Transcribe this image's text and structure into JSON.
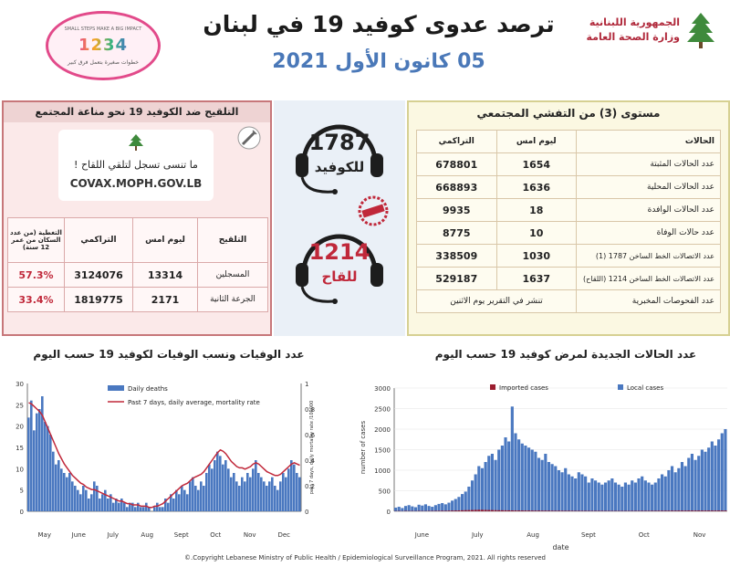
{
  "header": {
    "title": "ترصد عدوى كوفيد 19 في لبنان",
    "date": "05 كانون الأول 2021",
    "ministry_line1": "الجمهورية اللبنانية",
    "ministry_line2": "وزارة الصحة العامة",
    "campaign_top": "SMALL STEPS MAKE A BIG IMPACT",
    "campaign_numbers": "1234",
    "campaign_bottom": "خطوات صغيرة بتعمل فرق كبير"
  },
  "colors": {
    "title_blue": "#4a78b8",
    "left_panel_bg": "#fbe9e9",
    "left_panel_border": "#c7777a",
    "right_panel_bg": "#fbf8e2",
    "right_panel_border": "#d6d092",
    "middle_bg": "#eaf0f7",
    "bar_blue": "#4a78c0",
    "line_red": "#c0283a",
    "imported_red": "#9b1c2e"
  },
  "vaccination": {
    "heading": "التلقيح ضد الكوفيد 19 نحو مناعة المجتمع",
    "reminder": "ما تنسى تسجل لتلقي اللقاح !",
    "url": "COVAX.MOPH.GOV.LB",
    "columns": [
      "التلقيح",
      "ليوم امس",
      "التراكمي",
      "التغطية (من عدد السكان من عمر 12 سنة)"
    ],
    "rows": [
      {
        "label": "المسجلين",
        "yesterday": "13314",
        "cumulative": "3124076",
        "coverage": "57.3%"
      },
      {
        "label": "الجرعة الثانية",
        "yesterday": "2171",
        "cumulative": "1819775",
        "coverage": "33.4%"
      }
    ]
  },
  "middle": {
    "cases_number": "1787",
    "cases_label": "للكوفيد",
    "vaccine_number": "1214",
    "vaccine_label": "للقاح",
    "stamp_icon": "red-stamp-icon"
  },
  "cases": {
    "heading": "مستوى (3) من التفشي المجتمعي",
    "columns": [
      "الحالات",
      "ليوم امس",
      "التراكمي"
    ],
    "rows": [
      {
        "label": "عدد الحالات المثبتة",
        "yesterday": "1654",
        "cumulative": "678801"
      },
      {
        "label": "عدد الحالات المحلية",
        "yesterday": "1636",
        "cumulative": "668893"
      },
      {
        "label": "عدد الحالات الوافدة",
        "yesterday": "18",
        "cumulative": "9935"
      },
      {
        "label": "عدد حالات الوفاة",
        "yesterday": "10",
        "cumulative": "8775"
      },
      {
        "label": "عدد الاتصالات الخط الساخن 1787 (1)",
        "yesterday": "1030",
        "cumulative": "338509"
      },
      {
        "label": "عدد الاتصالات الخط الساخن 1214 (اللقاح)",
        "yesterday": "1637",
        "cumulative": "529187"
      }
    ],
    "tests_label": "عدد الفحوصات المخبرية",
    "tests_note": "تنشر في التقرير يوم الاثنين"
  },
  "footer": "©.Copyright Lebanese Ministry of Public Health / Epidemiological Surveillance Program, 2021. All rights reserved",
  "chart_data": [
    {
      "type": "bar",
      "title": "عدد الوفيات ونسب الوفيات لكوفيد 19 حسب اليوم",
      "xlabel": "",
      "ylabel": "",
      "y2label": "past 7 days, daily mortality rate /100000",
      "ylim": [
        0,
        30
      ],
      "y2lim": [
        0,
        1
      ],
      "yticks": [
        0,
        5,
        10,
        15,
        20,
        25,
        30
      ],
      "y2ticks": [
        0,
        0.2,
        0.4,
        0.6,
        0.8,
        1
      ],
      "months": [
        "May",
        "June",
        "July",
        "Aug",
        "Sept",
        "Oct",
        "Nov",
        "Dec"
      ],
      "month_positions": [
        0,
        1,
        2,
        3,
        4,
        5,
        6,
        7
      ],
      "legend": [
        "Daily deaths",
        "Past 7 days, daily average, mortality rate"
      ],
      "legend_position": "top-center",
      "series": [
        {
          "name": "Daily deaths",
          "kind": "bar",
          "values": [
            22,
            26,
            19,
            23,
            24,
            27,
            21,
            20,
            18,
            14,
            11,
            12,
            10,
            9,
            8,
            9,
            7,
            6,
            5,
            4,
            6,
            5,
            3,
            4,
            7,
            6,
            3,
            4,
            5,
            3,
            4,
            2,
            3,
            2,
            3,
            2,
            1,
            2,
            2,
            1,
            2,
            1,
            1,
            2,
            1,
            0,
            1,
            2,
            1,
            1,
            3,
            2,
            4,
            3,
            5,
            4,
            6,
            5,
            4,
            7,
            8,
            6,
            5,
            7,
            6,
            9,
            11,
            10,
            12,
            14,
            13,
            11,
            12,
            10,
            8,
            9,
            7,
            6,
            8,
            7,
            9,
            8,
            10,
            12,
            9,
            8,
            7,
            6,
            7,
            8,
            6,
            5,
            7,
            9,
            8,
            10,
            12,
            11,
            9,
            8
          ]
        },
        {
          "name": "Past 7 days, daily average, mortality rate",
          "kind": "line",
          "axis": "y2",
          "values": [
            0.85,
            0.84,
            0.82,
            0.8,
            0.78,
            0.75,
            0.7,
            0.65,
            0.6,
            0.55,
            0.5,
            0.45,
            0.41,
            0.37,
            0.34,
            0.31,
            0.28,
            0.26,
            0.24,
            0.22,
            0.21,
            0.19,
            0.18,
            0.17,
            0.17,
            0.16,
            0.15,
            0.14,
            0.13,
            0.12,
            0.11,
            0.1,
            0.09,
            0.08,
            0.08,
            0.07,
            0.06,
            0.06,
            0.05,
            0.05,
            0.05,
            0.04,
            0.04,
            0.04,
            0.03,
            0.03,
            0.04,
            0.04,
            0.05,
            0.06,
            0.08,
            0.1,
            0.12,
            0.14,
            0.16,
            0.18,
            0.2,
            0.21,
            0.22,
            0.24,
            0.26,
            0.27,
            0.28,
            0.29,
            0.31,
            0.34,
            0.37,
            0.4,
            0.43,
            0.46,
            0.48,
            0.47,
            0.45,
            0.42,
            0.39,
            0.37,
            0.35,
            0.34,
            0.34,
            0.33,
            0.34,
            0.35,
            0.37,
            0.38,
            0.37,
            0.35,
            0.33,
            0.31,
            0.3,
            0.29,
            0.28,
            0.28,
            0.29,
            0.31,
            0.33,
            0.35,
            0.37,
            0.38,
            0.37,
            0.36
          ]
        }
      ]
    },
    {
      "type": "bar",
      "title": "عدد الحالات الجديدة لمرض كوفيد 19 حسب اليوم",
      "xlabel": "date",
      "ylabel": "number of cases",
      "ylim": [
        0,
        3000
      ],
      "yticks": [
        0,
        500,
        1000,
        1500,
        2000,
        2500,
        3000
      ],
      "months": [
        "June",
        "July",
        "Aug",
        "Sept",
        "Oct",
        "Nov"
      ],
      "month_positions": [
        0,
        1,
        2,
        3,
        4,
        5
      ],
      "legend": [
        "Imported cases",
        "Local cases"
      ],
      "legend_position": "top-center",
      "series": [
        {
          "name": "Local cases",
          "values": [
            90,
            110,
            80,
            130,
            150,
            120,
            100,
            160,
            140,
            170,
            130,
            110,
            150,
            180,
            200,
            170,
            210,
            260,
            300,
            350,
            420,
            480,
            600,
            750,
            900,
            1100,
            1050,
            1200,
            1350,
            1400,
            1250,
            1500,
            1600,
            1800,
            1700,
            2550,
            1900,
            1750,
            1650,
            1600,
            1550,
            1500,
            1450,
            1300,
            1250,
            1400,
            1200,
            1150,
            1100,
            1000,
            950,
            1050,
            900,
            850,
            800,
            950,
            900,
            850,
            700,
            800,
            750,
            700,
            650,
            700,
            750,
            800,
            700,
            650,
            600,
            700,
            650,
            750,
            700,
            800,
            850,
            750,
            700,
            650,
            700,
            800,
            900,
            850,
            1000,
            1100,
            950,
            1050,
            1200,
            1100,
            1300,
            1400,
            1250,
            1350,
            1500,
            1450,
            1550,
            1700,
            1600,
            1750,
            1900,
            2000
          ]
        },
        {
          "name": "Imported cases",
          "values": [
            6,
            8,
            5,
            9,
            7,
            8,
            6,
            9,
            8,
            7,
            9,
            10,
            11,
            12,
            14,
            13,
            16,
            18,
            20,
            22,
            25,
            28,
            30,
            32,
            35,
            38,
            36,
            34,
            32,
            30,
            28,
            26,
            25,
            24,
            23,
            22,
            21,
            20,
            20,
            19,
            18,
            18,
            17,
            17,
            16,
            16,
            15,
            15,
            14,
            14,
            14,
            13,
            13,
            13,
            12,
            12,
            12,
            12,
            11,
            11,
            11,
            11,
            11,
            10,
            10,
            10,
            10,
            10,
            10,
            10,
            10,
            11,
            11,
            11,
            12,
            12,
            12,
            13,
            13,
            14,
            14,
            15,
            15,
            16,
            16,
            17,
            17,
            17,
            18,
            18,
            18,
            18,
            18,
            18,
            18,
            18,
            18,
            18,
            18,
            18
          ]
        }
      ]
    }
  ]
}
